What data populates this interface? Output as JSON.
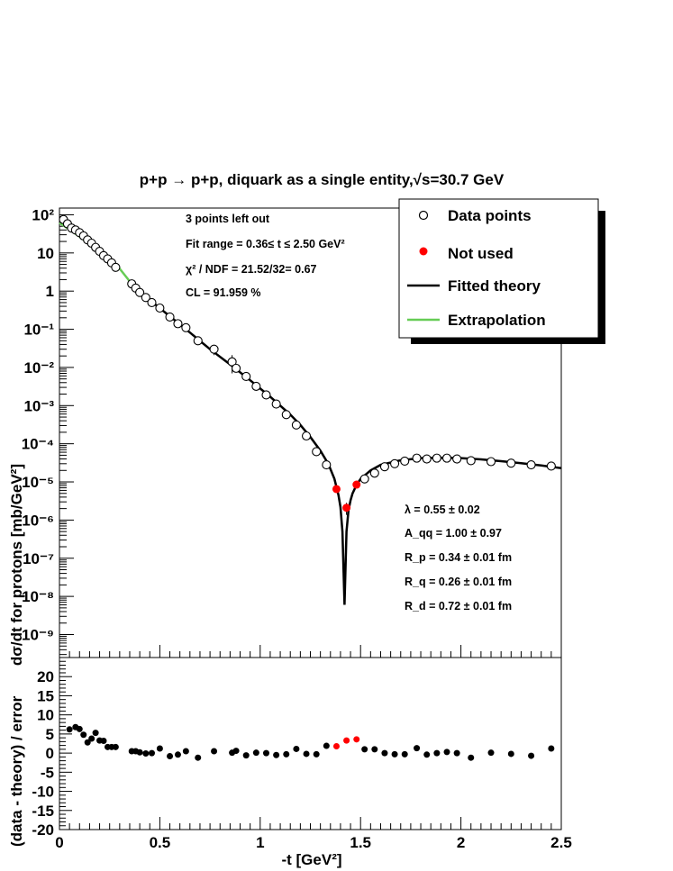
{
  "chart_data": {
    "type": "scatter",
    "title": "p+p → p+p, diquark as a single entity,√s=30.7 GeV",
    "xlabel": "-t [GeV²]",
    "xlim": [
      0,
      2.5
    ],
    "x_ticks": [
      "0",
      "0.5",
      "1",
      "1.5",
      "2",
      "2.5"
    ],
    "top_panel": {
      "ylabel": "dσ/dt for protons [mb/GeV²]",
      "yscale": "log",
      "ylim": [
        2.5e-10,
        150
      ],
      "y_ticks": [
        "10⁻⁹",
        "10⁻⁸",
        "10⁻⁷",
        "10⁻⁶",
        "10⁻⁵",
        "10⁻⁴",
        "10⁻³",
        "10⁻²",
        "10⁻¹",
        "1",
        "10",
        "10²"
      ],
      "stats_text": [
        "3 points left out",
        "Fit range = 0.36≤ t ≤ 2.50 GeV²",
        "χ² / NDF = 21.52/32= 0.67",
        "CL = 91.959 %"
      ],
      "params_text": [
        "λ = 0.55 ± 0.02",
        "A_qq = 1.00 ± 0.97",
        "R_p = 0.34 ± 0.01 fm",
        "R_q = 0.26 ± 0.01 fm",
        "R_d = 0.72 ± 0.01 fm"
      ],
      "legend_position": "top-right",
      "legend": [
        {
          "label": "Data points",
          "style": "open-circle",
          "color": "#000000"
        },
        {
          "label": "Not used",
          "style": "filled-circle",
          "color": "#ff0000"
        },
        {
          "label": "Fitted theory",
          "style": "line",
          "color": "#000000"
        },
        {
          "label": "Extrapolation",
          "style": "line",
          "color": "#66cc55"
        }
      ],
      "data_points": {
        "x": [
          0.02,
          0.04,
          0.06,
          0.08,
          0.1,
          0.12,
          0.14,
          0.16,
          0.18,
          0.2,
          0.22,
          0.24,
          0.26,
          0.28,
          0.36,
          0.38,
          0.4,
          0.43,
          0.46,
          0.5,
          0.55,
          0.59,
          0.63,
          0.69,
          0.77,
          0.86,
          0.88,
          0.93,
          0.98,
          1.03,
          1.08,
          1.13,
          1.18,
          1.23,
          1.28,
          1.33,
          1.52,
          1.57,
          1.62,
          1.67,
          1.72,
          1.78,
          1.83,
          1.88,
          1.93,
          1.98,
          2.05,
          2.15,
          2.25,
          2.35,
          2.45
        ],
        "y": [
          75,
          58,
          45,
          40,
          34,
          28,
          22,
          18,
          14,
          11,
          8.5,
          7,
          5.5,
          4.2,
          1.55,
          1.2,
          0.92,
          0.68,
          0.5,
          0.36,
          0.21,
          0.14,
          0.11,
          0.05,
          0.03,
          0.014,
          0.0095,
          0.0058,
          0.0032,
          0.0019,
          0.0011,
          0.00058,
          0.00031,
          0.00016,
          6.2e-05,
          2.8e-05,
          1.2e-05,
          1.7e-05,
          2.5e-05,
          3e-05,
          3.5e-05,
          4.2e-05,
          4e-05,
          4.2e-05,
          4.2e-05,
          4e-05,
          3.6e-05,
          3.4e-05,
          3.1e-05,
          2.8e-05,
          2.6e-05
        ],
        "yerr_frac": [
          0,
          0,
          0,
          0,
          0,
          0,
          0,
          0,
          0,
          0,
          0,
          0,
          0,
          0,
          0,
          0,
          0,
          0,
          0,
          0,
          0,
          0,
          0,
          0,
          0.3,
          0.5,
          0,
          0,
          0,
          0,
          0,
          0,
          0,
          0,
          0,
          0,
          0,
          0,
          0,
          0,
          0,
          0,
          0,
          0,
          0,
          0,
          0,
          0,
          0,
          0,
          0
        ]
      },
      "not_used_points": {
        "x": [
          1.38,
          1.43,
          1.48
        ],
        "y": [
          6.5e-06,
          2.1e-06,
          8.5e-06
        ],
        "yerr_frac": [
          0,
          0.35,
          0
        ]
      },
      "fitted_theory": {
        "x": [
          0.36,
          0.45,
          0.55,
          0.65,
          0.75,
          0.85,
          0.95,
          1.05,
          1.15,
          1.2,
          1.25,
          1.3,
          1.34,
          1.37,
          1.39,
          1.4,
          1.41,
          1.42,
          1.43,
          1.44,
          1.45,
          1.46,
          1.48,
          1.5,
          1.55,
          1.6,
          1.7,
          1.8,
          1.9,
          2.0,
          2.1,
          2.2,
          2.3,
          2.4,
          2.5
        ],
        "y": [
          1.55,
          0.58,
          0.22,
          0.082,
          0.03,
          0.012,
          0.0046,
          0.0017,
          0.00058,
          0.00031,
          0.00015,
          6.6e-05,
          2.9e-05,
          1.2e-05,
          4.5e-06,
          2.2e-06,
          5e-07,
          6e-09,
          5e-07,
          1.8e-06,
          3.3e-06,
          5e-06,
          8.3e-06,
          1.2e-05,
          2e-05,
          2.8e-05,
          3.7e-05,
          4.2e-05,
          4.3e-05,
          4.2e-05,
          3.9e-05,
          3.5e-05,
          3.1e-05,
          2.7e-05,
          2.3e-05
        ]
      },
      "extrapolation": {
        "x": [
          0.0,
          0.1,
          0.2,
          0.3,
          0.36
        ],
        "y": [
          62,
          27,
          10.5,
          3.9,
          1.55
        ]
      }
    },
    "bottom_panel": {
      "ylabel": "(data - theory) / error",
      "ylim": [
        -20,
        25
      ],
      "y_ticks": [
        -20,
        -15,
        -10,
        -5,
        0,
        5,
        10,
        15,
        20
      ],
      "residuals": {
        "x": [
          0.05,
          0.08,
          0.1,
          0.12,
          0.14,
          0.16,
          0.18,
          0.2,
          0.22,
          0.24,
          0.26,
          0.28,
          0.36,
          0.38,
          0.4,
          0.43,
          0.46,
          0.5,
          0.55,
          0.59,
          0.63,
          0.69,
          0.77,
          0.86,
          0.88,
          0.93,
          0.98,
          1.03,
          1.08,
          1.13,
          1.18,
          1.23,
          1.28,
          1.33,
          1.52,
          1.57,
          1.62,
          1.67,
          1.72,
          1.78,
          1.83,
          1.88,
          1.93,
          1.98,
          2.05,
          2.15,
          2.25,
          2.35,
          2.45
        ],
        "y": [
          6.2,
          6.8,
          6.3,
          4.8,
          2.8,
          3.8,
          5.3,
          3.3,
          3.2,
          1.6,
          1.6,
          1.6,
          0.5,
          0.5,
          0.2,
          -0.1,
          0.0,
          1.2,
          -0.8,
          -0.4,
          0.5,
          -1.2,
          0.5,
          0.1,
          0.6,
          -0.6,
          0.1,
          0.0,
          -0.5,
          -0.3,
          1.1,
          -0.2,
          -0.3,
          1.9,
          1.0,
          1.0,
          0.0,
          -0.3,
          -0.3,
          1.3,
          -0.4,
          0.0,
          0.3,
          0.0,
          -1.2,
          0.1,
          -0.2,
          -0.7,
          1.2
        ]
      },
      "not_used_residuals": {
        "x": [
          1.38,
          1.43,
          1.48
        ],
        "y": [
          1.8,
          3.3,
          3.6
        ]
      }
    }
  }
}
